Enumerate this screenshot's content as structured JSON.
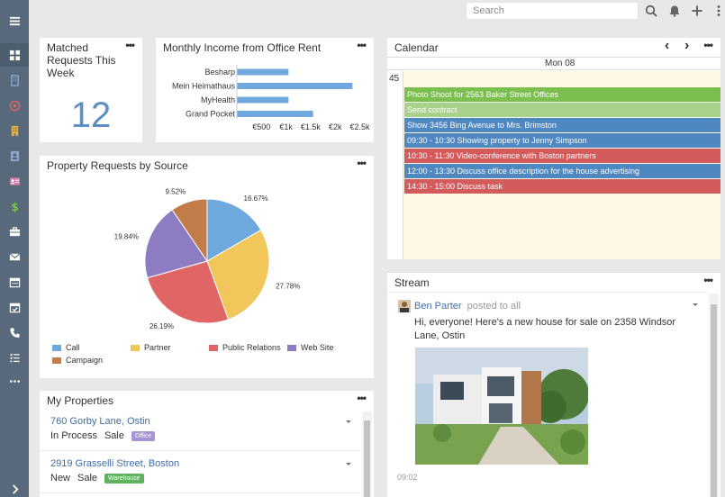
{
  "topbar": {
    "search_placeholder": "Search"
  },
  "sidebar": {
    "items": [
      {
        "icon": "menu-icon"
      },
      {
        "icon": "dashboard-icon"
      },
      {
        "icon": "building-icon"
      },
      {
        "icon": "target-icon"
      },
      {
        "icon": "office-icon"
      },
      {
        "icon": "contact-icon"
      },
      {
        "icon": "id-card-icon"
      },
      {
        "icon": "dollar-icon"
      },
      {
        "icon": "briefcase-icon"
      },
      {
        "icon": "envelope-icon"
      },
      {
        "icon": "calendar-icon"
      },
      {
        "icon": "calendar-check-icon"
      },
      {
        "icon": "phone-icon"
      },
      {
        "icon": "tasks-icon"
      },
      {
        "icon": "more-icon"
      },
      {
        "icon": "expand-icon"
      }
    ]
  },
  "matched": {
    "title": "Matched Requests This Week",
    "value": "12",
    "menu": "•••"
  },
  "income": {
    "title": "Monthly Income from Office Rent",
    "menu": "•••"
  },
  "requests": {
    "title": "Property Requests by Source",
    "menu": "•••",
    "legend": [
      {
        "label": "Call",
        "color": "#6fa8dc"
      },
      {
        "label": "Partner",
        "color": "#f1c75b"
      },
      {
        "label": "Public Relations",
        "color": "#e06666"
      },
      {
        "label": "Web Site",
        "color": "#8e7cc3"
      },
      {
        "label": "Campaign",
        "color": "#c27c4a"
      }
    ]
  },
  "calendar": {
    "title": "Calendar",
    "menu": "•••",
    "prev": "‹",
    "next": "›",
    "day": "Mon 08",
    "hour": "45",
    "events": [
      {
        "text": "Photo Shoot for 2563 Baker Street Offices",
        "color": "#7bbf4e"
      },
      {
        "text": "Send contract",
        "color": "#a9d18e"
      },
      {
        "text": "Show 3456 Bing Avenue to Mrs. Brimston",
        "color": "#4f87c0"
      },
      {
        "text": "09:30 - 10:30 Showing property to Jenny Simpson",
        "color": "#4f87c0"
      },
      {
        "text": "10:30 - 11:30 Video-conference with Boston partners",
        "color": "#d45b5b"
      },
      {
        "text": "12:00 - 13:30 Discuss office description for the house advertising",
        "color": "#4f87c0"
      },
      {
        "text": "14:30 - 15:00 Discuss task",
        "color": "#d45b5b"
      }
    ]
  },
  "stream": {
    "title": "Stream",
    "menu": "•••",
    "author": "Ben Parter",
    "action": "posted to all",
    "text": "Hi, everyone! Here's a new house for sale on 2358 Windsor Lane, Ostin",
    "time": "09:02"
  },
  "properties": {
    "title": "My Properties",
    "menu": "•••",
    "rows": [
      {
        "address": "760 Gorby Lane, Ostin",
        "status": "In Process",
        "type": "Sale",
        "badge": "Office",
        "badge_color": "#a593d6"
      },
      {
        "address": "2919 Grasselli Street, Boston",
        "status": "New",
        "type": "Sale",
        "badge": "Warehouse",
        "badge_color": "#5fb35f"
      }
    ]
  },
  "chart_data": [
    {
      "type": "bar",
      "orientation": "horizontal",
      "categories": [
        "Besharp",
        "Mein Heimathaus",
        "MyHealth",
        "Grand Pocket"
      ],
      "values": [
        1050,
        2350,
        1050,
        1550
      ],
      "xlim": [
        0,
        2600
      ],
      "xticks": [
        "€500",
        "€1k",
        "€1.5k",
        "€2k",
        "€2.5k"
      ],
      "xtick_values": [
        500,
        1000,
        1500,
        2000,
        2500
      ],
      "color": "#6fa8dc"
    },
    {
      "type": "pie",
      "categories": [
        "Call",
        "Partner",
        "Public Relations",
        "Web Site",
        "Campaign"
      ],
      "values": [
        16.67,
        27.78,
        26.19,
        19.84,
        9.52
      ],
      "labels": [
        "16.67%",
        "27.78%",
        "26.19%",
        "19.84%",
        "9.52%"
      ],
      "colors": [
        "#6fa8dc",
        "#f1c75b",
        "#e06666",
        "#8e7cc3",
        "#c27c4a"
      ]
    }
  ]
}
